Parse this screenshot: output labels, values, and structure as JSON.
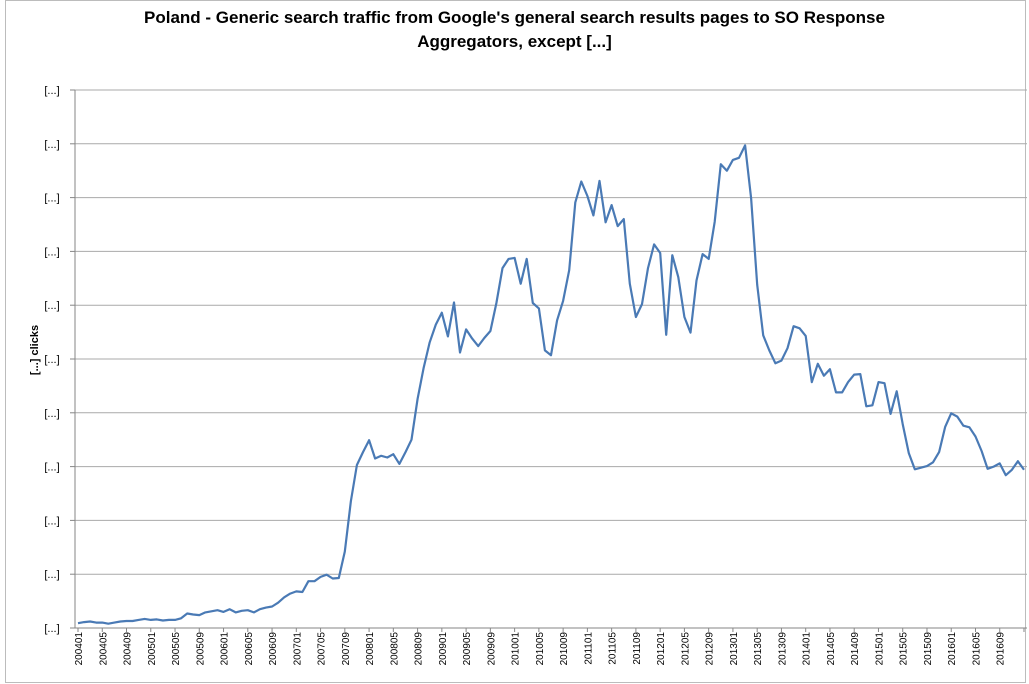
{
  "chart_data": {
    "type": "line",
    "title_line1": "Poland - Generic search traffic from Google's general search results pages to SO Response",
    "title_line2": "Aggregators, except  [...]",
    "ylabel": "[...] clicks",
    "xlabel": "",
    "y_tick_labels": [
      "[...]",
      "[...]",
      "[...]",
      "[...]",
      "[...]",
      "[...]",
      "[...]",
      "[...]",
      "[...]",
      "[...]",
      "[...]"
    ],
    "ylim": [
      0,
      10
    ],
    "grid": true,
    "legend": "none",
    "x_tick_labels": [
      "200401",
      "200405",
      "200409",
      "200501",
      "200505",
      "200509",
      "200601",
      "200605",
      "200609",
      "200701",
      "200705",
      "200709",
      "200801",
      "200805",
      "200809",
      "200901",
      "200905",
      "200909",
      "201001",
      "201005",
      "201009",
      "201101",
      "201105",
      "201109",
      "201201",
      "201205",
      "201209",
      "201301",
      "201305",
      "201309",
      "201401",
      "201405",
      "201409",
      "201501",
      "201505",
      "201509",
      "201601",
      "201605",
      "201609"
    ],
    "series": [
      {
        "color": "#4a7ab5",
        "values": [
          0.09,
          0.11,
          0.12,
          0.1,
          0.1,
          0.08,
          0.1,
          0.12,
          0.13,
          0.13,
          0.15,
          0.17,
          0.15,
          0.16,
          0.14,
          0.15,
          0.15,
          0.18,
          0.27,
          0.25,
          0.24,
          0.29,
          0.31,
          0.33,
          0.3,
          0.35,
          0.29,
          0.32,
          0.33,
          0.29,
          0.35,
          0.38,
          0.4,
          0.47,
          0.57,
          0.64,
          0.68,
          0.67,
          0.87,
          0.87,
          0.95,
          0.99,
          0.92,
          0.93,
          1.42,
          2.36,
          3.03,
          3.27,
          3.49,
          3.15,
          3.2,
          3.17,
          3.23,
          3.05,
          3.27,
          3.5,
          4.26,
          4.84,
          5.31,
          5.64,
          5.86,
          5.42,
          6.05,
          5.12,
          5.55,
          5.38,
          5.24,
          5.39,
          5.52,
          6.04,
          6.69,
          6.86,
          6.88,
          6.4,
          6.86,
          6.04,
          5.94,
          5.16,
          5.07,
          5.72,
          6.08,
          6.65,
          7.91,
          8.3,
          8.03,
          7.67,
          8.31,
          7.54,
          7.86,
          7.47,
          7.6,
          6.4,
          5.78,
          6.02,
          6.69,
          7.13,
          6.97,
          5.45,
          6.93,
          6.52,
          5.78,
          5.49,
          6.46,
          6.95,
          6.86,
          7.55,
          8.62,
          8.5,
          8.7,
          8.74,
          8.97,
          7.99,
          6.38,
          5.44,
          5.16,
          4.92,
          4.97,
          5.2,
          5.61,
          5.57,
          5.43,
          4.57,
          4.91,
          4.69,
          4.81,
          4.38,
          4.38,
          4.57,
          4.71,
          4.72,
          4.12,
          4.14,
          4.57,
          4.55,
          3.98,
          4.4,
          3.79,
          3.25,
          2.95,
          2.98,
          3.01,
          3.08,
          3.27,
          3.74,
          3.99,
          3.93,
          3.76,
          3.73,
          3.56,
          3.29,
          2.96,
          3.0,
          3.06,
          2.84,
          2.94,
          3.1,
          2.94
        ]
      }
    ]
  }
}
